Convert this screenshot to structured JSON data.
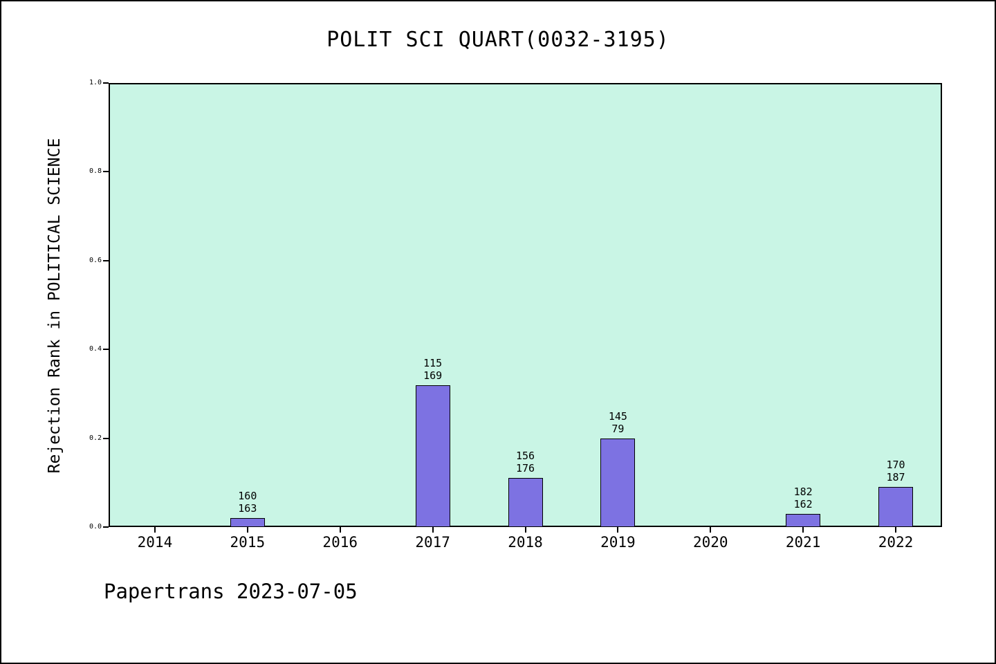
{
  "header": {
    "title": "POLIT SCI QUART(0032-3195)"
  },
  "footer": {
    "text": "Papertrans 2023-07-05"
  },
  "chart_data": {
    "type": "bar",
    "title": "POLIT SCI QUART(0032-3195)",
    "xlabel": "",
    "ylabel": "Rejection Rank in POLITICAL SCIENCE",
    "categories": [
      "2014",
      "2015",
      "2016",
      "2017",
      "2018",
      "2019",
      "2020",
      "2021",
      "2022"
    ],
    "values": [
      null,
      0.02,
      null,
      0.32,
      0.11,
      0.2,
      null,
      0.03,
      0.09
    ],
    "bar_labels": [
      null,
      [
        "160",
        "163"
      ],
      null,
      [
        "115",
        "169"
      ],
      [
        "156",
        "176"
      ],
      [
        "145",
        "79"
      ],
      null,
      [
        "182",
        "162"
      ],
      [
        "170",
        "187"
      ]
    ],
    "ylim": [
      0.0,
      1.0
    ],
    "yticks": [
      0.0,
      0.2,
      0.4,
      0.6,
      0.8,
      1.0
    ],
    "ytick_labels": [
      "0.0",
      "0.2",
      "0.4",
      "0.6",
      "0.8",
      "1.0"
    ],
    "grid": false,
    "legend": null,
    "colors": {
      "figure_bg": "#ffffff",
      "plot_bg": "#c9f5e5",
      "bar_fill": "#7d72e2",
      "bar_edge": "#000000",
      "axis": "#000000",
      "text": "#000000"
    }
  }
}
